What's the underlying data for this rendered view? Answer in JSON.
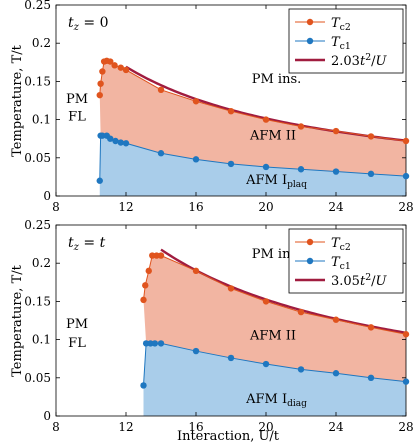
{
  "figure": {
    "xlabel": "Interaction, U/t",
    "ylabel": "Temperature, T/t"
  },
  "colors": {
    "tc2": "#E0541E",
    "tc1": "#1F77C0",
    "fit": "#A01C3F",
    "afm2_fill": "#F2B5A2",
    "afm1_fill": "#A9CDEA"
  },
  "chart_data": [
    {
      "type": "line",
      "panel_label": "t_z = 0",
      "xlim": [
        8,
        28
      ],
      "ylim": [
        0,
        0.25
      ],
      "xticks": [
        8,
        12,
        16,
        20,
        24,
        28
      ],
      "yticks": [
        0,
        0.05,
        0.1,
        0.15,
        0.2,
        0.25
      ],
      "ytick_labels": [
        "0",
        "0.05",
        "0.1",
        "0.15",
        "0.2",
        "0.25"
      ],
      "grid": false,
      "legend_position": "top-right",
      "series": [
        {
          "name": "T_c2",
          "x": [
            10.5,
            10.55,
            10.65,
            10.75,
            10.9,
            11.1,
            11.35,
            11.7,
            12.0,
            14.0,
            16.0,
            18.0,
            20.0,
            22.0,
            24.0,
            26.0,
            28.0
          ],
          "y": [
            0.132,
            0.147,
            0.163,
            0.176,
            0.177,
            0.176,
            0.171,
            0.168,
            0.165,
            0.139,
            0.124,
            0.111,
            0.1,
            0.091,
            0.085,
            0.078,
            0.072
          ]
        },
        {
          "name": "T_c1",
          "x": [
            10.5,
            10.55,
            10.65,
            10.9,
            11.1,
            11.4,
            11.7,
            12.0,
            14.0,
            16.0,
            18.0,
            20.0,
            22.0,
            24.0,
            26.0,
            28.0
          ],
          "y": [
            0.02,
            0.079,
            0.079,
            0.079,
            0.075,
            0.072,
            0.07,
            0.069,
            0.056,
            0.048,
            0.042,
            0.038,
            0.035,
            0.032,
            0.029,
            0.026
          ]
        },
        {
          "name": "2.03t^2/U",
          "coefficient": 2.03,
          "x_range": [
            12,
            28
          ]
        }
      ],
      "annotations": [
        {
          "text": "PM ins.",
          "x": 20.6,
          "y": 0.148
        },
        {
          "text": "PM",
          "x": 9.2,
          "y": 0.122
        },
        {
          "text": "FL",
          "x": 9.2,
          "y": 0.099
        },
        {
          "text": "AFM II",
          "x": 20.4,
          "y": 0.074
        },
        {
          "text": "AFM I",
          "subscript": "plaq",
          "x": 20.6,
          "y": 0.016
        }
      ]
    },
    {
      "type": "line",
      "panel_label": "t_z = t",
      "xlim": [
        8,
        28
      ],
      "ylim": [
        0,
        0.25
      ],
      "xticks": [
        8,
        12,
        16,
        20,
        24,
        28
      ],
      "yticks": [
        0,
        0.05,
        0.1,
        0.15,
        0.2,
        0.25
      ],
      "ytick_labels": [
        "0",
        "0.05",
        "0.1",
        "0.15",
        "0.2",
        "0.25"
      ],
      "grid": false,
      "legend_position": "top-right",
      "series": [
        {
          "name": "T_c2",
          "x": [
            13.0,
            13.1,
            13.3,
            13.5,
            13.75,
            14.0,
            16.0,
            18.0,
            20.0,
            22.0,
            24.0,
            26.0,
            28.0
          ],
          "y": [
            0.152,
            0.171,
            0.19,
            0.21,
            0.21,
            0.21,
            0.19,
            0.167,
            0.15,
            0.136,
            0.126,
            0.116,
            0.107
          ]
        },
        {
          "name": "T_c1",
          "x": [
            13.0,
            13.15,
            13.4,
            13.65,
            14.0,
            16.0,
            18.0,
            20.0,
            22.0,
            24.0,
            26.0,
            28.0
          ],
          "y": [
            0.04,
            0.095,
            0.095,
            0.095,
            0.095,
            0.085,
            0.076,
            0.068,
            0.061,
            0.056,
            0.05,
            0.045
          ]
        },
        {
          "name": "3.05t^2/U",
          "coefficient": 3.05,
          "x_range": [
            14,
            28
          ]
        }
      ],
      "annotations": [
        {
          "text": "PM ins.",
          "x": 20.6,
          "y": 0.207
        },
        {
          "text": "PM",
          "x": 9.2,
          "y": 0.115
        },
        {
          "text": "FL",
          "x": 9.2,
          "y": 0.09
        },
        {
          "text": "AFM II",
          "x": 20.4,
          "y": 0.1
        },
        {
          "text": "AFM I",
          "subscript": "diag",
          "x": 20.6,
          "y": 0.017
        }
      ]
    }
  ]
}
